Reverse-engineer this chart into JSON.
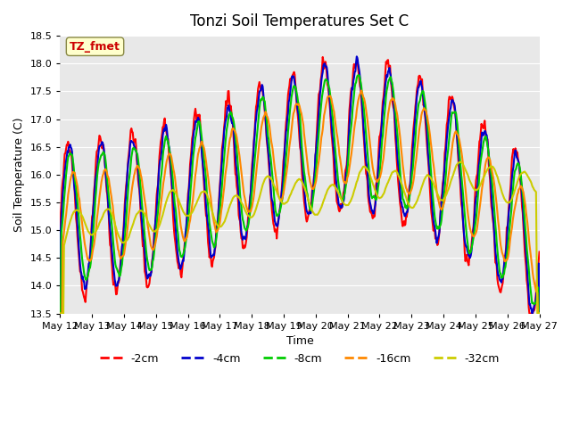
{
  "title": "Tonzi Soil Temperatures Set C",
  "xlabel": "Time",
  "ylabel": "Soil Temperature (C)",
  "ylim": [
    13.5,
    18.5
  ],
  "series_colors": [
    "#ff0000",
    "#0000cc",
    "#00cc00",
    "#ff8800",
    "#cccc00"
  ],
  "series_labels": [
    "-2cm",
    "-4cm",
    "-8cm",
    "-16cm",
    "-32cm"
  ],
  "series_linewidths": [
    1.5,
    1.5,
    1.5,
    1.5,
    1.5
  ],
  "bg_color": "#e8e8e8",
  "annotation_label": "TZ_fmet",
  "annotation_color": "#cc0000",
  "annotation_bg": "#ffffcc",
  "grid_color": "white",
  "tick_labels": [
    "May 12",
    "May 13",
    "May 14",
    "May 15",
    "May 16",
    "May 17",
    "May 18",
    "May 19",
    "May 20",
    "May 21",
    "May 22",
    "May 23",
    "May 24",
    "May 25",
    "May 26",
    "May 27"
  ]
}
